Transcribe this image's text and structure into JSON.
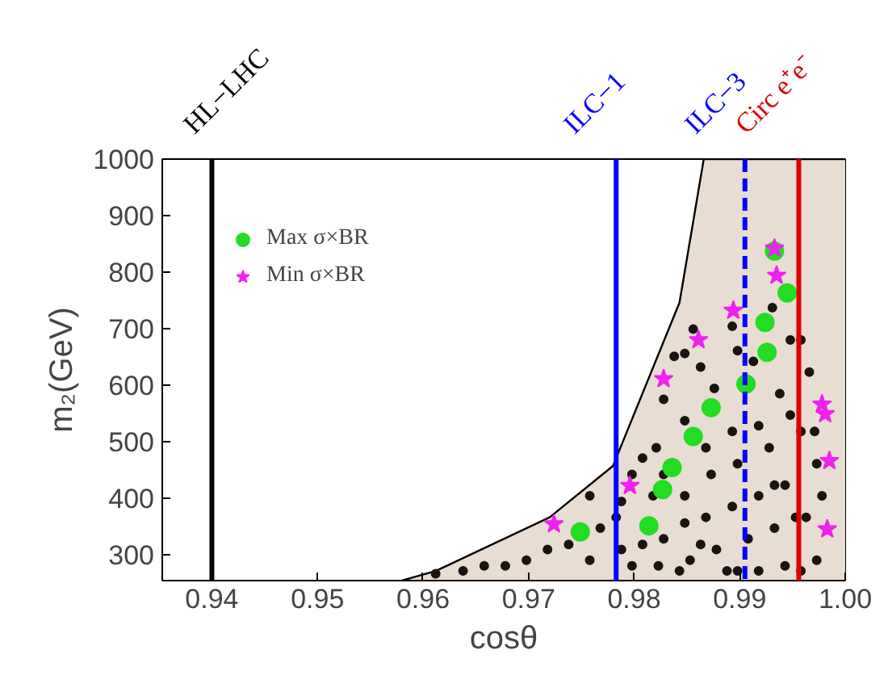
{
  "chart_data": {
    "type": "scatter",
    "xlabel": "cosθ",
    "ylabel": "m₂(GeV)",
    "xlim": [
      0.9353,
      1.0
    ],
    "ylim": [
      254,
      1000
    ],
    "xticks": [
      0.94,
      0.95,
      0.96,
      0.97,
      0.98,
      0.99,
      {
        "value": 1.0,
        "label": "1.00"
      }
    ],
    "yticks": [
      300,
      400,
      500,
      600,
      700,
      800,
      900,
      1000
    ],
    "grid": false,
    "legend": "top left",
    "ref_lines": [
      {
        "axis": "x",
        "value": 0.94,
        "label": "HL−LHC",
        "color": "#000000",
        "line_style": "solid"
      },
      {
        "axis": "x",
        "value": 0.9783,
        "label": "ILC−1",
        "color": "#0000ff",
        "line_style": "solid"
      },
      {
        "axis": "x",
        "value": 0.9905,
        "label": "ILC−3",
        "color": "#0000ff",
        "line_style": "dashed"
      },
      {
        "axis": "x",
        "value": 0.9956,
        "label": "Circ e⁺e⁻",
        "color": "#dd0000",
        "line_style": "solid"
      }
    ],
    "series": [
      {
        "type": "area",
        "color": "#e8ddd2",
        "x": [
          0.958,
          0.9612,
          0.972,
          0.978,
          0.9843,
          0.9866,
          1.0
        ],
        "values": [
          254,
          271,
          366,
          457,
          746,
          1000,
          1000
        ]
      },
      {
        "marker": "circle",
        "color": "#1a1410",
        "x": [
          0.9838,
          0.9848,
          0.9856,
          0.9863,
          0.9876,
          0.9893,
          0.9898,
          0.9913,
          0.9931,
          0.9948,
          0.9958,
          0.9966,
          0.9938,
          0.9948,
          0.9918,
          0.9893,
          0.9868,
          0.9848,
          0.9828,
          0.9821,
          0.9808,
          0.9798,
          0.9828,
          0.9848,
          0.9873,
          0.9898,
          0.9928,
          0.9958,
          0.9973,
          0.9943,
          0.9918,
          0.9893,
          0.9868,
          0.9848,
          0.9828,
          0.9808,
          0.9788,
          0.9768,
          0.9758,
          0.9738,
          0.9718,
          0.9698,
          0.9678,
          0.9658,
          0.9638,
          0.9612,
          0.9783,
          0.9798,
          0.9823,
          0.9853,
          0.9878,
          0.9908,
          0.9933,
          0.9963,
          0.9973,
          0.9943,
          0.9918,
          0.9888,
          0.9863,
          0.9843,
          0.9818,
          0.9933,
          0.9953,
          0.9978,
          0.9788,
          0.9758,
          0.9898,
          0.9958,
          0.9971
        ],
        "values": [
          651,
          656,
          699,
          632,
          594,
          704,
          661,
          642,
          737,
          680,
          680,
          623,
          585,
          547,
          528,
          518,
          489,
          537,
          575,
          489,
          471,
          442,
          442,
          404,
          442,
          461,
          489,
          518,
          461,
          423,
          404,
          385,
          366,
          356,
          328,
          318,
          309,
          347,
          290,
          318,
          309,
          290,
          280,
          280,
          271,
          266,
          366,
          280,
          280,
          290,
          309,
          328,
          347,
          366,
          290,
          280,
          271,
          271,
          318,
          271,
          404,
          423,
          366,
          404,
          394,
          404,
          271,
          271,
          518
        ]
      },
      {
        "name": "Max σ×BR",
        "marker": "circle",
        "color": "#22dd22",
        "x": [
          0.9933,
          0.9945,
          0.9924,
          0.9926,
          0.9906,
          0.9873,
          0.9856,
          0.9836,
          0.9827,
          0.9814,
          0.9749
        ],
        "values": [
          837,
          763,
          711,
          658,
          602,
          560,
          509,
          454,
          415,
          351,
          340
        ]
      },
      {
        "name": "Min σ×BR",
        "marker": "star",
        "color": "#ee22ee",
        "x": [
          0.9933,
          0.9935,
          0.9894,
          0.9861,
          0.9828,
          0.9796,
          0.9724,
          0.9978,
          0.9981,
          0.9985,
          0.9983
        ],
        "values": [
          842,
          794,
          732,
          680,
          611,
          422,
          354,
          566,
          549,
          466,
          345
        ]
      }
    ]
  }
}
